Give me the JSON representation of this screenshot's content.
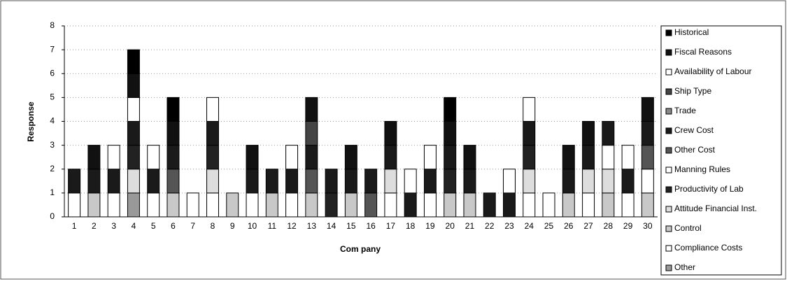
{
  "chart_data": {
    "type": "stacked_bar",
    "y_label": "Response",
    "x_label": "Com pany",
    "categories": [
      "1",
      "2",
      "3",
      "4",
      "5",
      "6",
      "7",
      "8",
      "9",
      "10",
      "11",
      "12",
      "13",
      "14",
      "15",
      "16",
      "17",
      "18",
      "19",
      "20",
      "21",
      "22",
      "23",
      "24",
      "25",
      "26",
      "27",
      "28",
      "29",
      "30"
    ],
    "ylim": [
      0,
      8
    ],
    "yticks": [
      0,
      1,
      2,
      3,
      4,
      5,
      6,
      7,
      8
    ],
    "grid": true,
    "legend": "right",
    "series": [
      {
        "name": "Historical",
        "color": "#000000",
        "values": [
          0,
          0,
          0,
          1,
          0,
          1,
          0,
          0,
          0,
          0,
          0,
          0,
          0,
          0,
          0,
          0,
          0,
          0,
          0,
          1,
          0,
          0,
          0,
          0,
          0,
          0,
          0,
          0,
          0,
          0
        ]
      },
      {
        "name": "Fiscal Reasons",
        "color": "#111111",
        "values": [
          0,
          1,
          0,
          1,
          0,
          1,
          0,
          0,
          0,
          1,
          0,
          0,
          1,
          0,
          1,
          0,
          1,
          0,
          0,
          1,
          1,
          0,
          0,
          0,
          0,
          1,
          1,
          0,
          0,
          1
        ]
      },
      {
        "name": "Availability of Labour",
        "color": "#ffffff",
        "values": [
          0,
          0,
          1,
          1,
          1,
          0,
          0,
          1,
          0,
          0,
          0,
          1,
          0,
          0,
          0,
          0,
          0,
          1,
          1,
          0,
          0,
          0,
          1,
          1,
          0,
          0,
          0,
          0,
          1,
          0
        ]
      },
      {
        "name": "Ship Type",
        "color": "#444444",
        "values": [
          0,
          0,
          0,
          0,
          0,
          0,
          0,
          0,
          0,
          0,
          0,
          0,
          1,
          0,
          0,
          0,
          0,
          0,
          0,
          0,
          0,
          0,
          0,
          0,
          0,
          0,
          0,
          0,
          0,
          0
        ]
      },
      {
        "name": "Trade",
        "color": "#888888",
        "values": [
          0,
          0,
          0,
          0,
          0,
          0,
          0,
          0,
          0,
          0,
          0,
          0,
          0,
          0,
          0,
          0,
          0,
          0,
          0,
          0,
          0,
          0,
          0,
          0,
          0,
          0,
          0,
          0,
          0,
          0
        ]
      },
      {
        "name": "Crew Cost",
        "color": "#1a1a1a",
        "values": [
          1,
          1,
          1,
          1,
          1,
          1,
          0,
          1,
          0,
          1,
          1,
          1,
          1,
          1,
          1,
          1,
          1,
          1,
          1,
          1,
          1,
          1,
          1,
          1,
          0,
          1,
          1,
          1,
          1,
          1
        ]
      },
      {
        "name": "Other Cost",
        "color": "#555555",
        "values": [
          0,
          0,
          0,
          0,
          0,
          1,
          0,
          0,
          0,
          0,
          0,
          0,
          1,
          0,
          0,
          1,
          0,
          0,
          0,
          0,
          0,
          0,
          0,
          0,
          0,
          0,
          0,
          0,
          0,
          1
        ]
      },
      {
        "name": "Manning Rules",
        "color": "#ffffff",
        "values": [
          0,
          0,
          0,
          0,
          0,
          0,
          0,
          0,
          0,
          0,
          0,
          0,
          0,
          0,
          0,
          0,
          0,
          0,
          0,
          0,
          0,
          0,
          0,
          0,
          0,
          0,
          0,
          1,
          0,
          1
        ]
      },
      {
        "name": "Productivity of Lab",
        "color": "#222222",
        "values": [
          0,
          0,
          0,
          1,
          0,
          0,
          0,
          1,
          0,
          0,
          0,
          0,
          0,
          1,
          0,
          0,
          0,
          0,
          0,
          1,
          0,
          0,
          0,
          1,
          0,
          0,
          0,
          0,
          0,
          0
        ]
      },
      {
        "name": "Attitude Financial Inst.",
        "color": "#dddddd",
        "values": [
          0,
          0,
          0,
          1,
          0,
          0,
          0,
          1,
          0,
          0,
          0,
          0,
          0,
          0,
          0,
          0,
          1,
          0,
          0,
          0,
          0,
          0,
          0,
          1,
          0,
          0,
          1,
          1,
          0,
          0
        ]
      },
      {
        "name": "Control",
        "color": "#c8c8c8",
        "values": [
          0,
          1,
          0,
          0,
          0,
          1,
          0,
          0,
          1,
          0,
          1,
          0,
          1,
          0,
          1,
          0,
          0,
          0,
          0,
          1,
          1,
          0,
          0,
          0,
          0,
          1,
          0,
          1,
          0,
          1
        ]
      },
      {
        "name": "Compliance Costs",
        "color": "#ffffff",
        "values": [
          1,
          0,
          1,
          0,
          1,
          0,
          1,
          1,
          0,
          1,
          0,
          1,
          0,
          0,
          0,
          0,
          1,
          0,
          1,
          0,
          0,
          0,
          0,
          1,
          1,
          0,
          1,
          0,
          1,
          0
        ]
      },
      {
        "name": "Other",
        "color": "#999999",
        "values": [
          0,
          0,
          0,
          1,
          0,
          0,
          0,
          0,
          0,
          0,
          0,
          0,
          0,
          0,
          0,
          0,
          0,
          0,
          0,
          0,
          0,
          0,
          0,
          0,
          0,
          0,
          0,
          0,
          0,
          0
        ]
      }
    ]
  }
}
